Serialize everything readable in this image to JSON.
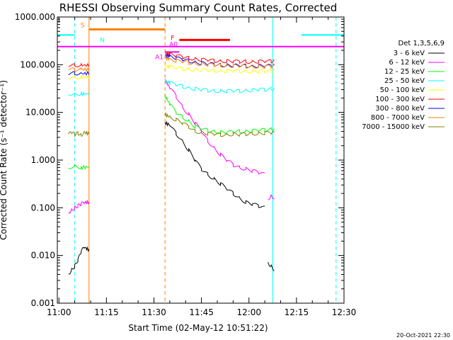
{
  "chart_data": {
    "type": "line",
    "title": "RHESSI Observing Summary Count Rates, Corrected",
    "xlabel": "Start Time (02-May-12 10:51:22)",
    "ylabel": "Corrected Count Rate (s⁻¹ detector⁻¹)",
    "yscale": "log",
    "ylim": [
      0.001,
      1000
    ],
    "xlim_minutes": [
      10.5,
      101
    ],
    "x_ticks": [
      {
        "minute": 11,
        "label": "11:00"
      },
      {
        "minute": 26,
        "label": "11:15"
      },
      {
        "minute": 41,
        "label": "11:30"
      },
      {
        "minute": 56,
        "label": "11:45"
      },
      {
        "minute": 71,
        "label": "12:00"
      },
      {
        "minute": 86,
        "label": "12:15"
      },
      {
        "minute": 101,
        "label": "12:30"
      }
    ],
    "y_ticks": [
      {
        "value": 0.001,
        "label": "0.001"
      },
      {
        "value": 0.01,
        "label": "0.010"
      },
      {
        "value": 0.1,
        "label": "0.100"
      },
      {
        "value": 1,
        "label": "1.000"
      },
      {
        "value": 10,
        "label": "10.000"
      },
      {
        "value": 100,
        "label": "100.000"
      },
      {
        "value": 1000,
        "label": "1000.000"
      }
    ],
    "legend_header": "Det 1,3,5,6,9",
    "series": [
      {
        "name": "3 - 6 keV",
        "color": "#000000",
        "segments": [
          [
            [
              14.0,
              0.004
            ],
            [
              15.0,
              0.005
            ],
            [
              16.0,
              0.006
            ],
            [
              17.0,
              0.008
            ],
            [
              18.0,
              0.012
            ],
            [
              19.0,
              0.015
            ],
            [
              20.5,
              0.013
            ]
          ],
          [
            [
              44.5,
              6.0
            ],
            [
              46,
              5.5
            ],
            [
              48,
              3.6
            ],
            [
              50,
              2.5
            ],
            [
              52,
              1.6
            ],
            [
              54,
              1.0
            ],
            [
              56,
              0.65
            ],
            [
              58,
              0.5
            ],
            [
              60,
              0.4
            ],
            [
              62,
              0.32
            ],
            [
              64,
              0.25
            ],
            [
              66,
              0.2
            ],
            [
              68,
              0.16
            ],
            [
              70,
              0.13
            ],
            [
              72,
              0.12
            ],
            [
              74,
              0.11
            ],
            [
              76,
              0.1
            ]
          ],
          [
            [
              77,
              0.007
            ],
            [
              78,
              0.006
            ],
            [
              79,
              0.005
            ]
          ]
        ]
      },
      {
        "name": "6 - 12 keV",
        "color": "#ff00ff",
        "segments": [
          [
            [
              14.0,
              0.08
            ],
            [
              15.0,
              0.09
            ],
            [
              16.0,
              0.1
            ],
            [
              17.0,
              0.11
            ],
            [
              18.0,
              0.12
            ],
            [
              19.0,
              0.13
            ],
            [
              20.5,
              0.13
            ]
          ],
          [
            [
              44.5,
              48
            ],
            [
              46,
              33
            ],
            [
              48,
              22
            ],
            [
              50,
              13
            ],
            [
              52,
              9
            ],
            [
              54,
              6
            ],
            [
              56,
              4
            ],
            [
              58,
              2.5
            ],
            [
              60,
              1.8
            ],
            [
              62,
              1.3
            ],
            [
              64,
              1.0
            ],
            [
              66,
              0.8
            ],
            [
              68,
              0.7
            ],
            [
              70,
              0.65
            ],
            [
              72,
              0.6
            ],
            [
              74,
              0.55
            ],
            [
              76,
              0.5
            ]
          ],
          [
            [
              77,
              0.15
            ],
            [
              78,
              0.18
            ],
            [
              79,
              0.16
            ]
          ]
        ]
      },
      {
        "name": "12 - 25 keV",
        "color": "#00ff00",
        "segments": [
          [
            [
              14.0,
              0.7
            ],
            [
              16.0,
              0.75
            ],
            [
              18.0,
              0.7
            ],
            [
              20.5,
              0.72
            ]
          ],
          [
            [
              44.5,
              22
            ],
            [
              46,
              15
            ],
            [
              48,
              10
            ],
            [
              50,
              8
            ],
            [
              52,
              6.5
            ],
            [
              54,
              5
            ],
            [
              56,
              4.5
            ],
            [
              58,
              4.2
            ],
            [
              60,
              4.0
            ],
            [
              62,
              3.8
            ],
            [
              64,
              3.8
            ],
            [
              66,
              3.9
            ],
            [
              68,
              4.0
            ],
            [
              70,
              4.0
            ],
            [
              72,
              4.1
            ],
            [
              74,
              4.2
            ],
            [
              76,
              4.3
            ],
            [
              78,
              4.5
            ],
            [
              79,
              4.5
            ]
          ]
        ]
      },
      {
        "name": "25 - 50 keV",
        "color": "#00ffff",
        "segments": [
          [
            [
              14.0,
              25
            ],
            [
              16.0,
              24
            ],
            [
              18.0,
              25
            ],
            [
              20.5,
              24
            ]
          ],
          [
            [
              44.5,
              45
            ],
            [
              46,
              42
            ],
            [
              48,
              38
            ],
            [
              50,
              35
            ],
            [
              52,
              33
            ],
            [
              54,
              31
            ],
            [
              56,
              30
            ],
            [
              58,
              29
            ],
            [
              60,
              28
            ],
            [
              62,
              28
            ],
            [
              64,
              28
            ],
            [
              66,
              28
            ],
            [
              68,
              28
            ],
            [
              70,
              29
            ],
            [
              72,
              29
            ],
            [
              74,
              30
            ],
            [
              76,
              30
            ],
            [
              78,
              31
            ],
            [
              79,
              31
            ]
          ]
        ]
      },
      {
        "name": "50 - 100 keV",
        "color": "#ffff00",
        "segments": [
          [
            [
              14.0,
              55
            ],
            [
              16.0,
              54
            ],
            [
              18.0,
              55
            ],
            [
              20.5,
              55
            ]
          ],
          [
            [
              44.5,
              95
            ],
            [
              46,
              90
            ],
            [
              48,
              85
            ],
            [
              50,
              82
            ],
            [
              52,
              80
            ],
            [
              54,
              78
            ],
            [
              56,
              77
            ],
            [
              58,
              76
            ],
            [
              60,
              75
            ],
            [
              62,
              74
            ],
            [
              64,
              74
            ],
            [
              66,
              73
            ],
            [
              68,
              73
            ],
            [
              70,
              73
            ],
            [
              72,
              73
            ],
            [
              74,
              73
            ],
            [
              76,
              73
            ],
            [
              78,
              73
            ],
            [
              79,
              73
            ]
          ]
        ]
      },
      {
        "name": "100 - 300 keV",
        "color": "#ff0000",
        "segments": [
          [
            [
              14.0,
              98
            ],
            [
              16.0,
              97
            ],
            [
              18.0,
              98
            ],
            [
              20.5,
              97
            ]
          ],
          [
            [
              44.5,
              175
            ],
            [
              46,
              165
            ],
            [
              48,
              155
            ],
            [
              50,
              145
            ],
            [
              52,
              138
            ],
            [
              54,
              132
            ],
            [
              56,
              127
            ],
            [
              58,
              124
            ],
            [
              60,
              121
            ],
            [
              62,
              119
            ],
            [
              64,
              118
            ],
            [
              66,
              117
            ],
            [
              68,
              116
            ],
            [
              70,
              116
            ],
            [
              72,
              115
            ],
            [
              74,
              116
            ],
            [
              76,
              117
            ],
            [
              78,
              117
            ],
            [
              79,
              118
            ]
          ]
        ]
      },
      {
        "name": "300 - 800 keV",
        "color": "#0000ff",
        "segments": [
          [
            [
              14.0,
              65
            ],
            [
              16.0,
              66
            ],
            [
              18.0,
              65
            ],
            [
              20.5,
              66
            ]
          ],
          [
            [
              44.5,
              160
            ],
            [
              46,
              148
            ],
            [
              48,
              138
            ],
            [
              50,
              128
            ],
            [
              52,
              120
            ],
            [
              54,
              113
            ],
            [
              56,
              108
            ],
            [
              58,
              104
            ],
            [
              60,
              101
            ],
            [
              62,
              99
            ],
            [
              64,
              97
            ],
            [
              66,
              96
            ],
            [
              68,
              95
            ],
            [
              70,
              95
            ],
            [
              72,
              94
            ],
            [
              74,
              94
            ],
            [
              76,
              94
            ],
            [
              78,
              94
            ],
            [
              79,
              94
            ]
          ]
        ]
      },
      {
        "name": "800 - 7000 keV",
        "color": "#ff8000",
        "segments": [
          [
            [
              14.0,
              80
            ],
            [
              16.0,
              79
            ],
            [
              18.0,
              80
            ],
            [
              20.5,
              79
            ]
          ],
          [
            [
              44.5,
              140
            ],
            [
              46,
              130
            ],
            [
              48,
              122
            ],
            [
              50,
              115
            ],
            [
              52,
              110
            ],
            [
              54,
              106
            ],
            [
              56,
              103
            ],
            [
              58,
              100
            ],
            [
              60,
              98
            ],
            [
              62,
              96
            ],
            [
              64,
              95
            ],
            [
              66,
              94
            ],
            [
              68,
              93
            ],
            [
              70,
              92
            ],
            [
              72,
              92
            ],
            [
              74,
              91
            ],
            [
              76,
              91
            ],
            [
              78,
              91
            ],
            [
              79,
              91
            ]
          ]
        ]
      },
      {
        "name": "7000 - 15000 keV",
        "color": "#808000",
        "segments": [
          [
            [
              14.0,
              3.5
            ],
            [
              15.0,
              3.8
            ],
            [
              16.0,
              3.4
            ],
            [
              17.0,
              3.7
            ],
            [
              18.0,
              3.3
            ],
            [
              19.0,
              3.8
            ],
            [
              20.5,
              3.6
            ]
          ],
          [
            [
              44.5,
              9
            ],
            [
              46,
              8
            ],
            [
              48,
              7
            ],
            [
              50,
              6
            ],
            [
              52,
              5
            ],
            [
              54,
              4
            ],
            [
              56,
              3.8
            ],
            [
              58,
              3.6
            ],
            [
              60,
              3.5
            ],
            [
              62,
              3.4
            ],
            [
              64,
              3.4
            ],
            [
              66,
              3.5
            ],
            [
              68,
              3.4
            ],
            [
              70,
              3.5
            ],
            [
              72,
              3.6
            ],
            [
              74,
              3.6
            ],
            [
              76,
              3.7
            ],
            [
              78,
              3.7
            ],
            [
              79,
              3.7
            ]
          ]
        ]
      }
    ],
    "flag_lines": [
      {
        "label": "S",
        "color": "#ff8000",
        "start_minute": 20.5,
        "end_minute": 44.5,
        "value": 550
      },
      {
        "label": "N",
        "color": "#00ffff",
        "start_minute": 10.5,
        "end_minute": 16.0,
        "value": 420
      },
      {
        "label": "N",
        "color": "#00ffff",
        "start_minute": 87.5,
        "end_minute": 101.0,
        "value": 420
      },
      {
        "label": "F",
        "color": "#ff0000",
        "start_minute": 49.0,
        "end_minute": 65.0,
        "value": 330
      },
      {
        "label": "A0",
        "color": "#ff00ff",
        "start_minute": 10.5,
        "end_minute": 101.0,
        "value": 240
      },
      {
        "label": "A1",
        "color": "#ff00ff",
        "start_minute": 44.5,
        "end_minute": 49.0,
        "value": 185
      }
    ],
    "vertical_markers": [
      {
        "minute": 16.0,
        "color": "#00ffff",
        "style": "dashed"
      },
      {
        "minute": 20.5,
        "color": "#ff8000",
        "style": "solid"
      },
      {
        "minute": 44.5,
        "color": "#ff8000",
        "style": "dashed"
      },
      {
        "minute": 78.5,
        "color": "#00ffff",
        "style": "solid"
      },
      {
        "minute": 98.5,
        "color": "#00ffff",
        "style": "dashed"
      }
    ],
    "timestamp": "20-Oct-2021 22:30"
  }
}
